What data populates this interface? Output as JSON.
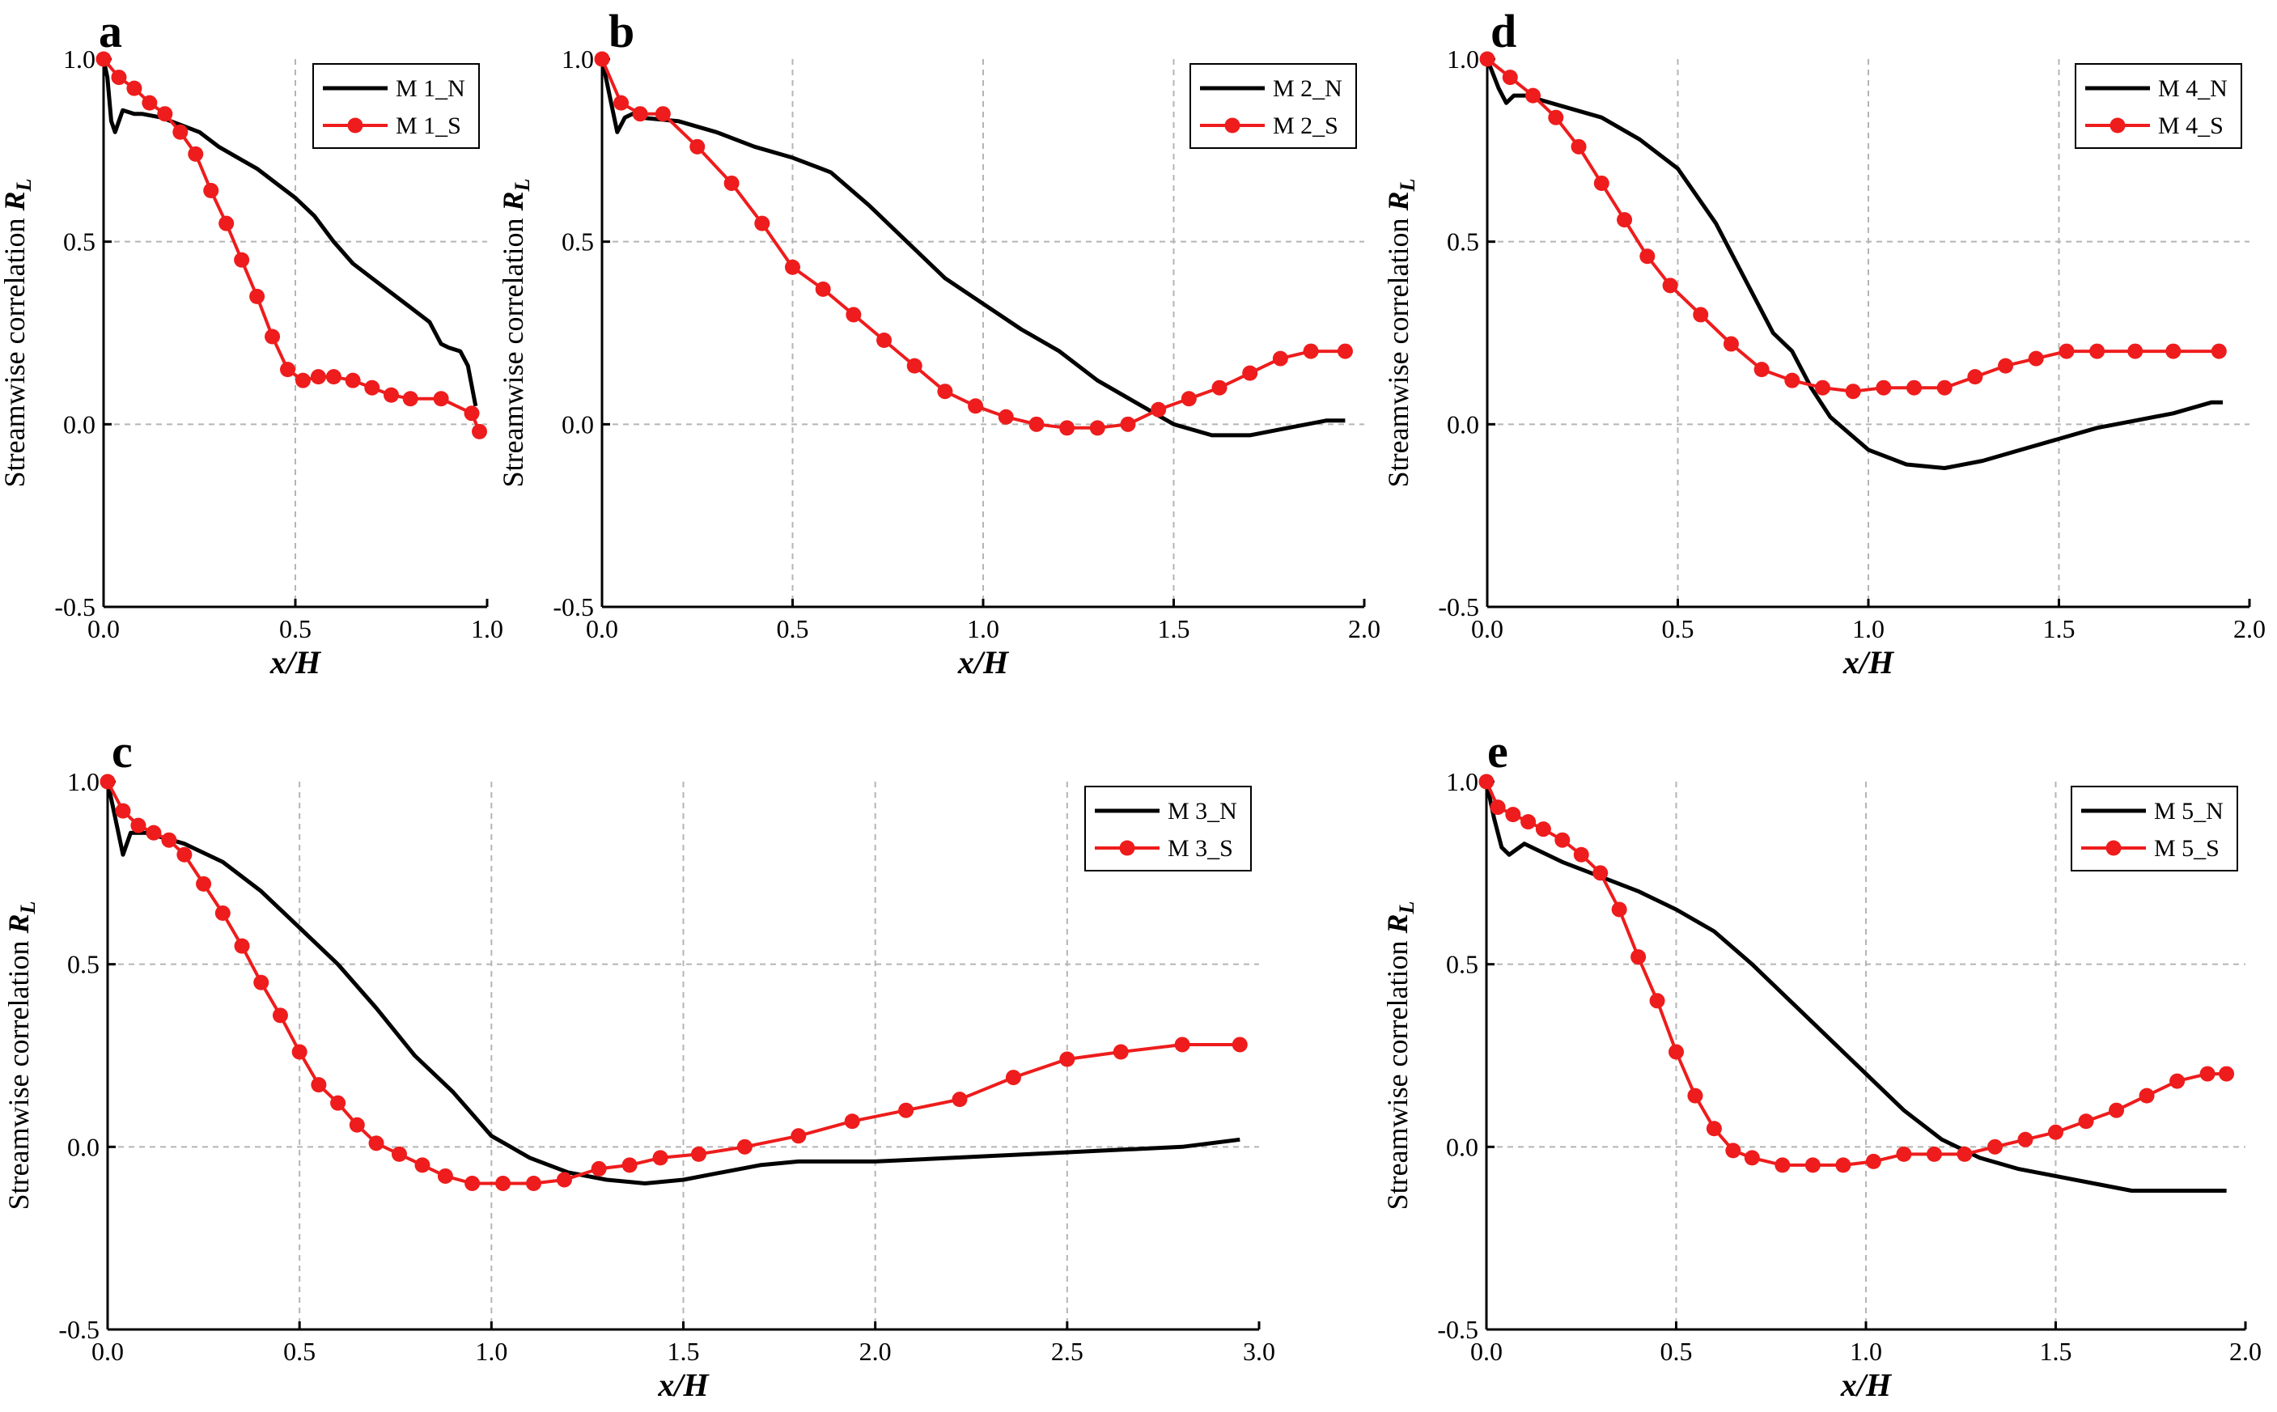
{
  "colors": {
    "N": "#000000",
    "S": "#ee1c1c"
  },
  "chart_data": [
    {
      "type": "line",
      "panel": "a",
      "xlabel": "x/H",
      "ylabel_main": "Streamwise correlation ",
      "ylabel_sym": "R",
      "ylabel_sub": "L",
      "xlim": [
        0,
        1.0
      ],
      "ylim": [
        -0.5,
        1.0
      ],
      "xticks": [
        "0.0",
        "0.5",
        "1.0"
      ],
      "yticks": [
        "-0.5",
        "0.0",
        "0.5",
        "1.0"
      ],
      "legend_position": "top-right",
      "series": [
        {
          "name": "M 1_N",
          "kind": "N",
          "x": [
            0,
            0.01,
            0.02,
            0.03,
            0.05,
            0.08,
            0.1,
            0.15,
            0.2,
            0.25,
            0.3,
            0.35,
            0.4,
            0.45,
            0.5,
            0.55,
            0.6,
            0.65,
            0.7,
            0.75,
            0.8,
            0.85,
            0.88,
            0.9,
            0.93,
            0.95,
            0.97
          ],
          "y": [
            1.0,
            0.95,
            0.83,
            0.8,
            0.86,
            0.85,
            0.85,
            0.84,
            0.82,
            0.8,
            0.76,
            0.73,
            0.7,
            0.66,
            0.62,
            0.57,
            0.5,
            0.44,
            0.4,
            0.36,
            0.32,
            0.28,
            0.22,
            0.21,
            0.2,
            0.16,
            0.05
          ]
        },
        {
          "name": "M 1_S",
          "kind": "S",
          "x": [
            0,
            0.04,
            0.08,
            0.12,
            0.16,
            0.2,
            0.24,
            0.28,
            0.32,
            0.36,
            0.4,
            0.44,
            0.48,
            0.52,
            0.56,
            0.6,
            0.65,
            0.7,
            0.75,
            0.8,
            0.88,
            0.96,
            0.98
          ],
          "y": [
            1.0,
            0.95,
            0.92,
            0.88,
            0.85,
            0.8,
            0.74,
            0.64,
            0.55,
            0.45,
            0.35,
            0.24,
            0.15,
            0.12,
            0.13,
            0.13,
            0.12,
            0.1,
            0.08,
            0.07,
            0.07,
            0.03,
            -0.02
          ]
        }
      ]
    },
    {
      "type": "line",
      "panel": "b",
      "xlabel": "x/H",
      "ylabel_main": "Streamwise correlation ",
      "ylabel_sym": "R",
      "ylabel_sub": "L",
      "xlim": [
        0,
        2.0
      ],
      "ylim": [
        -0.5,
        1.0
      ],
      "xticks": [
        "0.0",
        "0.5",
        "1.0",
        "1.5",
        "2.0"
      ],
      "yticks": [
        "-0.5",
        "0.0",
        "0.5",
        "1.0"
      ],
      "legend_position": "top-right",
      "series": [
        {
          "name": "M 2_N",
          "kind": "N",
          "x": [
            0,
            0.02,
            0.04,
            0.06,
            0.08,
            0.1,
            0.2,
            0.3,
            0.4,
            0.5,
            0.6,
            0.7,
            0.8,
            0.9,
            1.0,
            1.1,
            1.2,
            1.3,
            1.4,
            1.5,
            1.6,
            1.7,
            1.8,
            1.9,
            1.95
          ],
          "y": [
            1.0,
            0.9,
            0.8,
            0.84,
            0.85,
            0.84,
            0.83,
            0.8,
            0.76,
            0.73,
            0.69,
            0.6,
            0.5,
            0.4,
            0.33,
            0.26,
            0.2,
            0.12,
            0.06,
            0.0,
            -0.03,
            -0.03,
            -0.01,
            0.01,
            0.01
          ]
        },
        {
          "name": "M 2_S",
          "kind": "S",
          "x": [
            0,
            0.05,
            0.1,
            0.16,
            0.25,
            0.34,
            0.42,
            0.5,
            0.58,
            0.66,
            0.74,
            0.82,
            0.9,
            0.98,
            1.06,
            1.14,
            1.22,
            1.3,
            1.38,
            1.46,
            1.54,
            1.62,
            1.7,
            1.78,
            1.86,
            1.95
          ],
          "y": [
            1.0,
            0.88,
            0.85,
            0.85,
            0.76,
            0.66,
            0.55,
            0.43,
            0.37,
            0.3,
            0.23,
            0.16,
            0.09,
            0.05,
            0.02,
            0.0,
            -0.01,
            -0.01,
            0.0,
            0.04,
            0.07,
            0.1,
            0.14,
            0.18,
            0.2,
            0.2
          ]
        }
      ]
    },
    {
      "type": "line",
      "panel": "d",
      "xlabel": "x/H",
      "ylabel_main": "Streamwise correlation ",
      "ylabel_sym": "R",
      "ylabel_sub": "L",
      "xlim": [
        0,
        2.0
      ],
      "ylim": [
        -0.5,
        1.0
      ],
      "xticks": [
        "0.0",
        "0.5",
        "1.0",
        "1.5",
        "2.0"
      ],
      "yticks": [
        "-0.5",
        "0.0",
        "0.5",
        "1.0"
      ],
      "legend_position": "top-right",
      "series": [
        {
          "name": "M 4_N",
          "kind": "N",
          "x": [
            0,
            0.03,
            0.05,
            0.07,
            0.1,
            0.2,
            0.3,
            0.4,
            0.5,
            0.6,
            0.7,
            0.75,
            0.8,
            0.85,
            0.9,
            1.0,
            1.1,
            1.2,
            1.3,
            1.4,
            1.5,
            1.6,
            1.7,
            1.8,
            1.9,
            1.93
          ],
          "y": [
            1.0,
            0.92,
            0.88,
            0.9,
            0.9,
            0.87,
            0.84,
            0.78,
            0.7,
            0.55,
            0.35,
            0.25,
            0.2,
            0.1,
            0.02,
            -0.07,
            -0.11,
            -0.12,
            -0.1,
            -0.07,
            -0.04,
            -0.01,
            0.01,
            0.03,
            0.06,
            0.06
          ]
        },
        {
          "name": "M 4_S",
          "kind": "S",
          "x": [
            0,
            0.06,
            0.12,
            0.18,
            0.24,
            0.3,
            0.36,
            0.42,
            0.48,
            0.56,
            0.64,
            0.72,
            0.8,
            0.88,
            0.96,
            1.04,
            1.12,
            1.2,
            1.28,
            1.36,
            1.44,
            1.52,
            1.6,
            1.7,
            1.8,
            1.92
          ],
          "y": [
            1.0,
            0.95,
            0.9,
            0.84,
            0.76,
            0.66,
            0.56,
            0.46,
            0.38,
            0.3,
            0.22,
            0.15,
            0.12,
            0.1,
            0.09,
            0.1,
            0.1,
            0.1,
            0.13,
            0.16,
            0.18,
            0.2,
            0.2,
            0.2,
            0.2,
            0.2
          ]
        }
      ]
    },
    {
      "type": "line",
      "panel": "c",
      "xlabel": "x/H",
      "ylabel_main": "Streamwise correlation ",
      "ylabel_sym": "R",
      "ylabel_sub": "L",
      "xlim": [
        0,
        3.0
      ],
      "ylim": [
        -0.5,
        1.0
      ],
      "xticks": [
        "0.0",
        "0.5",
        "1.0",
        "1.5",
        "2.0",
        "2.5",
        "3.0"
      ],
      "yticks": [
        "-0.5",
        "0.0",
        "0.5",
        "1.0"
      ],
      "legend_position": "top-right",
      "series": [
        {
          "name": "M 3_N",
          "kind": "N",
          "x": [
            0,
            0.02,
            0.04,
            0.06,
            0.1,
            0.2,
            0.3,
            0.4,
            0.5,
            0.6,
            0.7,
            0.8,
            0.9,
            1.0,
            1.1,
            1.2,
            1.3,
            1.4,
            1.5,
            1.6,
            1.7,
            1.8,
            1.9,
            2.0,
            2.2,
            2.4,
            2.6,
            2.8,
            2.95
          ],
          "y": [
            1.0,
            0.9,
            0.8,
            0.86,
            0.86,
            0.83,
            0.78,
            0.7,
            0.6,
            0.5,
            0.38,
            0.25,
            0.15,
            0.03,
            -0.03,
            -0.07,
            -0.09,
            -0.1,
            -0.09,
            -0.07,
            -0.05,
            -0.04,
            -0.04,
            -0.04,
            -0.03,
            -0.02,
            -0.01,
            0.0,
            0.02
          ]
        },
        {
          "name": "M 3_S",
          "kind": "S",
          "x": [
            0,
            0.04,
            0.08,
            0.12,
            0.16,
            0.2,
            0.25,
            0.3,
            0.35,
            0.4,
            0.45,
            0.5,
            0.55,
            0.6,
            0.65,
            0.7,
            0.76,
            0.82,
            0.88,
            0.95,
            1.03,
            1.11,
            1.19,
            1.28,
            1.36,
            1.44,
            1.54,
            1.66,
            1.8,
            1.94,
            2.08,
            2.22,
            2.36,
            2.5,
            2.64,
            2.8,
            2.95
          ],
          "y": [
            1.0,
            0.92,
            0.88,
            0.86,
            0.84,
            0.8,
            0.72,
            0.64,
            0.55,
            0.45,
            0.36,
            0.26,
            0.17,
            0.12,
            0.06,
            0.01,
            -0.02,
            -0.05,
            -0.08,
            -0.1,
            -0.1,
            -0.1,
            -0.09,
            -0.06,
            -0.05,
            -0.03,
            -0.02,
            0.0,
            0.03,
            0.07,
            0.1,
            0.13,
            0.19,
            0.24,
            0.26,
            0.28,
            0.28
          ]
        }
      ]
    },
    {
      "type": "line",
      "panel": "e",
      "xlabel": "x/H",
      "ylabel_main": "Streamwise correlation ",
      "ylabel_sym": "R",
      "ylabel_sub": "L",
      "xlim": [
        0,
        2.0
      ],
      "ylim": [
        -0.5,
        1.0
      ],
      "xticks": [
        "0.0",
        "0.5",
        "1.0",
        "1.5",
        "2.0"
      ],
      "yticks": [
        "-0.5",
        "0.0",
        "0.5",
        "1.0"
      ],
      "legend_position": "top-right",
      "series": [
        {
          "name": "M 5_N",
          "kind": "N",
          "x": [
            0,
            0.02,
            0.04,
            0.06,
            0.1,
            0.2,
            0.3,
            0.4,
            0.5,
            0.6,
            0.7,
            0.8,
            0.9,
            1.0,
            1.1,
            1.2,
            1.3,
            1.4,
            1.5,
            1.6,
            1.7,
            1.8,
            1.9,
            1.95
          ],
          "y": [
            1.0,
            0.9,
            0.82,
            0.8,
            0.83,
            0.78,
            0.74,
            0.7,
            0.65,
            0.59,
            0.5,
            0.4,
            0.3,
            0.2,
            0.1,
            0.02,
            -0.03,
            -0.06,
            -0.08,
            -0.1,
            -0.12,
            -0.12,
            -0.12,
            -0.12
          ]
        },
        {
          "name": "M 5_S",
          "kind": "S",
          "x": [
            0,
            0.03,
            0.07,
            0.11,
            0.15,
            0.2,
            0.25,
            0.3,
            0.35,
            0.4,
            0.45,
            0.5,
            0.55,
            0.6,
            0.65,
            0.7,
            0.78,
            0.86,
            0.94,
            1.02,
            1.1,
            1.18,
            1.26,
            1.34,
            1.42,
            1.5,
            1.58,
            1.66,
            1.74,
            1.82,
            1.9,
            1.95
          ],
          "y": [
            1.0,
            0.93,
            0.91,
            0.89,
            0.87,
            0.84,
            0.8,
            0.75,
            0.65,
            0.52,
            0.4,
            0.26,
            0.14,
            0.05,
            -0.01,
            -0.03,
            -0.05,
            -0.05,
            -0.05,
            -0.04,
            -0.02,
            -0.02,
            -0.02,
            0.0,
            0.02,
            0.04,
            0.07,
            0.1,
            0.14,
            0.18,
            0.2,
            0.2
          ]
        }
      ]
    }
  ]
}
